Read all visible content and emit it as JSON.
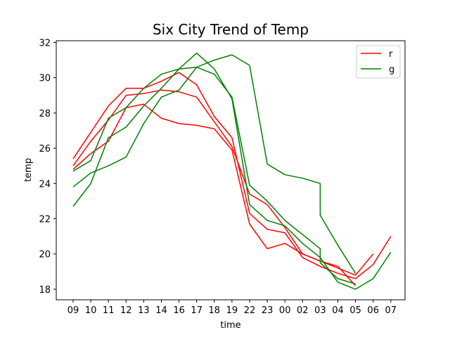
{
  "chart_data": {
    "type": "line",
    "title": "Six City Trend of Temp",
    "xlabel": "time",
    "ylabel": "temp",
    "ylim": [
      17.4,
      32.1
    ],
    "yticks": [
      18,
      20,
      22,
      24,
      26,
      28,
      30,
      32
    ],
    "categories": [
      "09",
      "10",
      "11",
      "12",
      "13",
      "14",
      "16",
      "17",
      "18",
      "19",
      "22",
      "23",
      "00",
      "02",
      "03",
      "04",
      "05",
      "06",
      "07"
    ],
    "legend": {
      "placement": "top-right",
      "entries": [
        {
          "label": "r",
          "color": "#ff0000"
        },
        {
          "label": "g",
          "color": "#008000"
        }
      ]
    },
    "series": [
      {
        "color": "#ff0000",
        "points": [
          [
            0,
            25.4
          ],
          [
            1,
            26.9
          ],
          [
            2,
            28.4
          ],
          [
            3,
            29.4
          ],
          [
            4,
            29.4
          ],
          [
            5,
            29.8
          ],
          [
            6,
            30.3
          ],
          [
            7,
            29.6
          ],
          [
            8,
            27.8
          ],
          [
            9,
            26.6
          ],
          [
            10,
            22.3
          ],
          [
            11,
            21.4
          ],
          [
            12,
            21.2
          ],
          [
            13,
            19.8
          ],
          [
            14,
            19.3
          ],
          [
            15,
            18.9
          ],
          [
            16,
            18.6
          ],
          [
            17,
            19.4
          ],
          [
            18,
            21.0
          ]
        ]
      },
      {
        "color": "#ff0000",
        "points": [
          [
            0,
            25.0
          ],
          [
            1,
            26.4
          ],
          [
            2,
            27.6
          ],
          [
            3,
            29.0
          ],
          [
            4,
            29.1
          ],
          [
            5,
            29.3
          ],
          [
            6,
            29.2
          ],
          [
            7,
            28.9
          ],
          [
            8,
            27.5
          ],
          [
            9,
            26.1
          ],
          [
            10,
            23.4
          ],
          [
            11,
            22.8
          ],
          [
            12,
            21.5
          ],
          [
            13,
            20.0
          ],
          [
            14,
            19.6
          ],
          [
            15,
            19.2
          ],
          [
            16,
            18.8
          ],
          [
            17,
            20.0
          ]
        ]
      },
      {
        "color": "#ff0000",
        "points": [
          [
            0,
            24.8
          ],
          [
            1,
            25.7
          ],
          [
            2,
            26.4
          ],
          [
            3,
            28.3
          ],
          [
            4,
            28.5
          ],
          [
            5,
            27.7
          ],
          [
            6,
            27.4
          ],
          [
            7,
            27.3
          ],
          [
            8,
            27.1
          ],
          [
            9,
            25.9
          ],
          [
            10,
            21.7
          ],
          [
            11,
            20.3
          ],
          [
            12,
            20.6
          ],
          [
            13,
            20.0
          ],
          [
            14,
            19.6
          ],
          [
            15,
            19.3
          ],
          [
            16,
            18.2
          ]
        ]
      },
      {
        "color": "#008000",
        "points": [
          [
            0,
            24.7
          ],
          [
            1,
            25.3
          ],
          [
            2,
            27.7
          ],
          [
            3,
            28.3
          ],
          [
            4,
            29.4
          ],
          [
            5,
            30.2
          ],
          [
            6,
            30.5
          ],
          [
            7,
            30.6
          ],
          [
            8,
            30.2
          ],
          [
            9,
            28.9
          ],
          [
            10,
            23.9
          ],
          [
            11,
            23.0
          ],
          [
            12,
            21.9
          ],
          [
            13,
            21.1
          ],
          [
            14,
            20.3
          ],
          [
            14,
            19.5
          ],
          [
            15,
            18.6
          ],
          [
            16,
            18.3
          ]
        ]
      },
      {
        "color": "#008000",
        "points": [
          [
            0,
            23.8
          ],
          [
            1,
            24.6
          ],
          [
            2,
            25.0
          ],
          [
            3,
            25.5
          ],
          [
            4,
            27.4
          ],
          [
            5,
            28.9
          ],
          [
            6,
            29.3
          ],
          [
            7,
            30.6
          ],
          [
            8,
            31.0
          ],
          [
            9,
            31.3
          ],
          [
            10,
            30.7
          ],
          [
            11,
            25.1
          ],
          [
            12,
            24.5
          ],
          [
            13,
            24.3
          ],
          [
            14,
            24.0
          ],
          [
            14,
            22.2
          ],
          [
            15,
            20.5
          ],
          [
            16,
            18.9
          ]
        ]
      },
      {
        "color": "#008000",
        "points": [
          [
            0,
            22.7
          ],
          [
            1,
            24.0
          ],
          [
            2,
            26.6
          ],
          [
            3,
            27.2
          ],
          [
            4,
            28.4
          ],
          [
            5,
            29.4
          ],
          [
            6,
            30.5
          ],
          [
            7,
            31.4
          ],
          [
            8,
            30.5
          ],
          [
            9,
            28.8
          ],
          [
            10,
            22.8
          ],
          [
            11,
            21.9
          ],
          [
            12,
            21.6
          ],
          [
            13,
            20.6
          ],
          [
            14,
            19.8
          ],
          [
            15,
            18.4
          ],
          [
            16,
            18.0
          ],
          [
            17,
            18.6
          ],
          [
            18,
            20.1
          ]
        ]
      }
    ]
  }
}
